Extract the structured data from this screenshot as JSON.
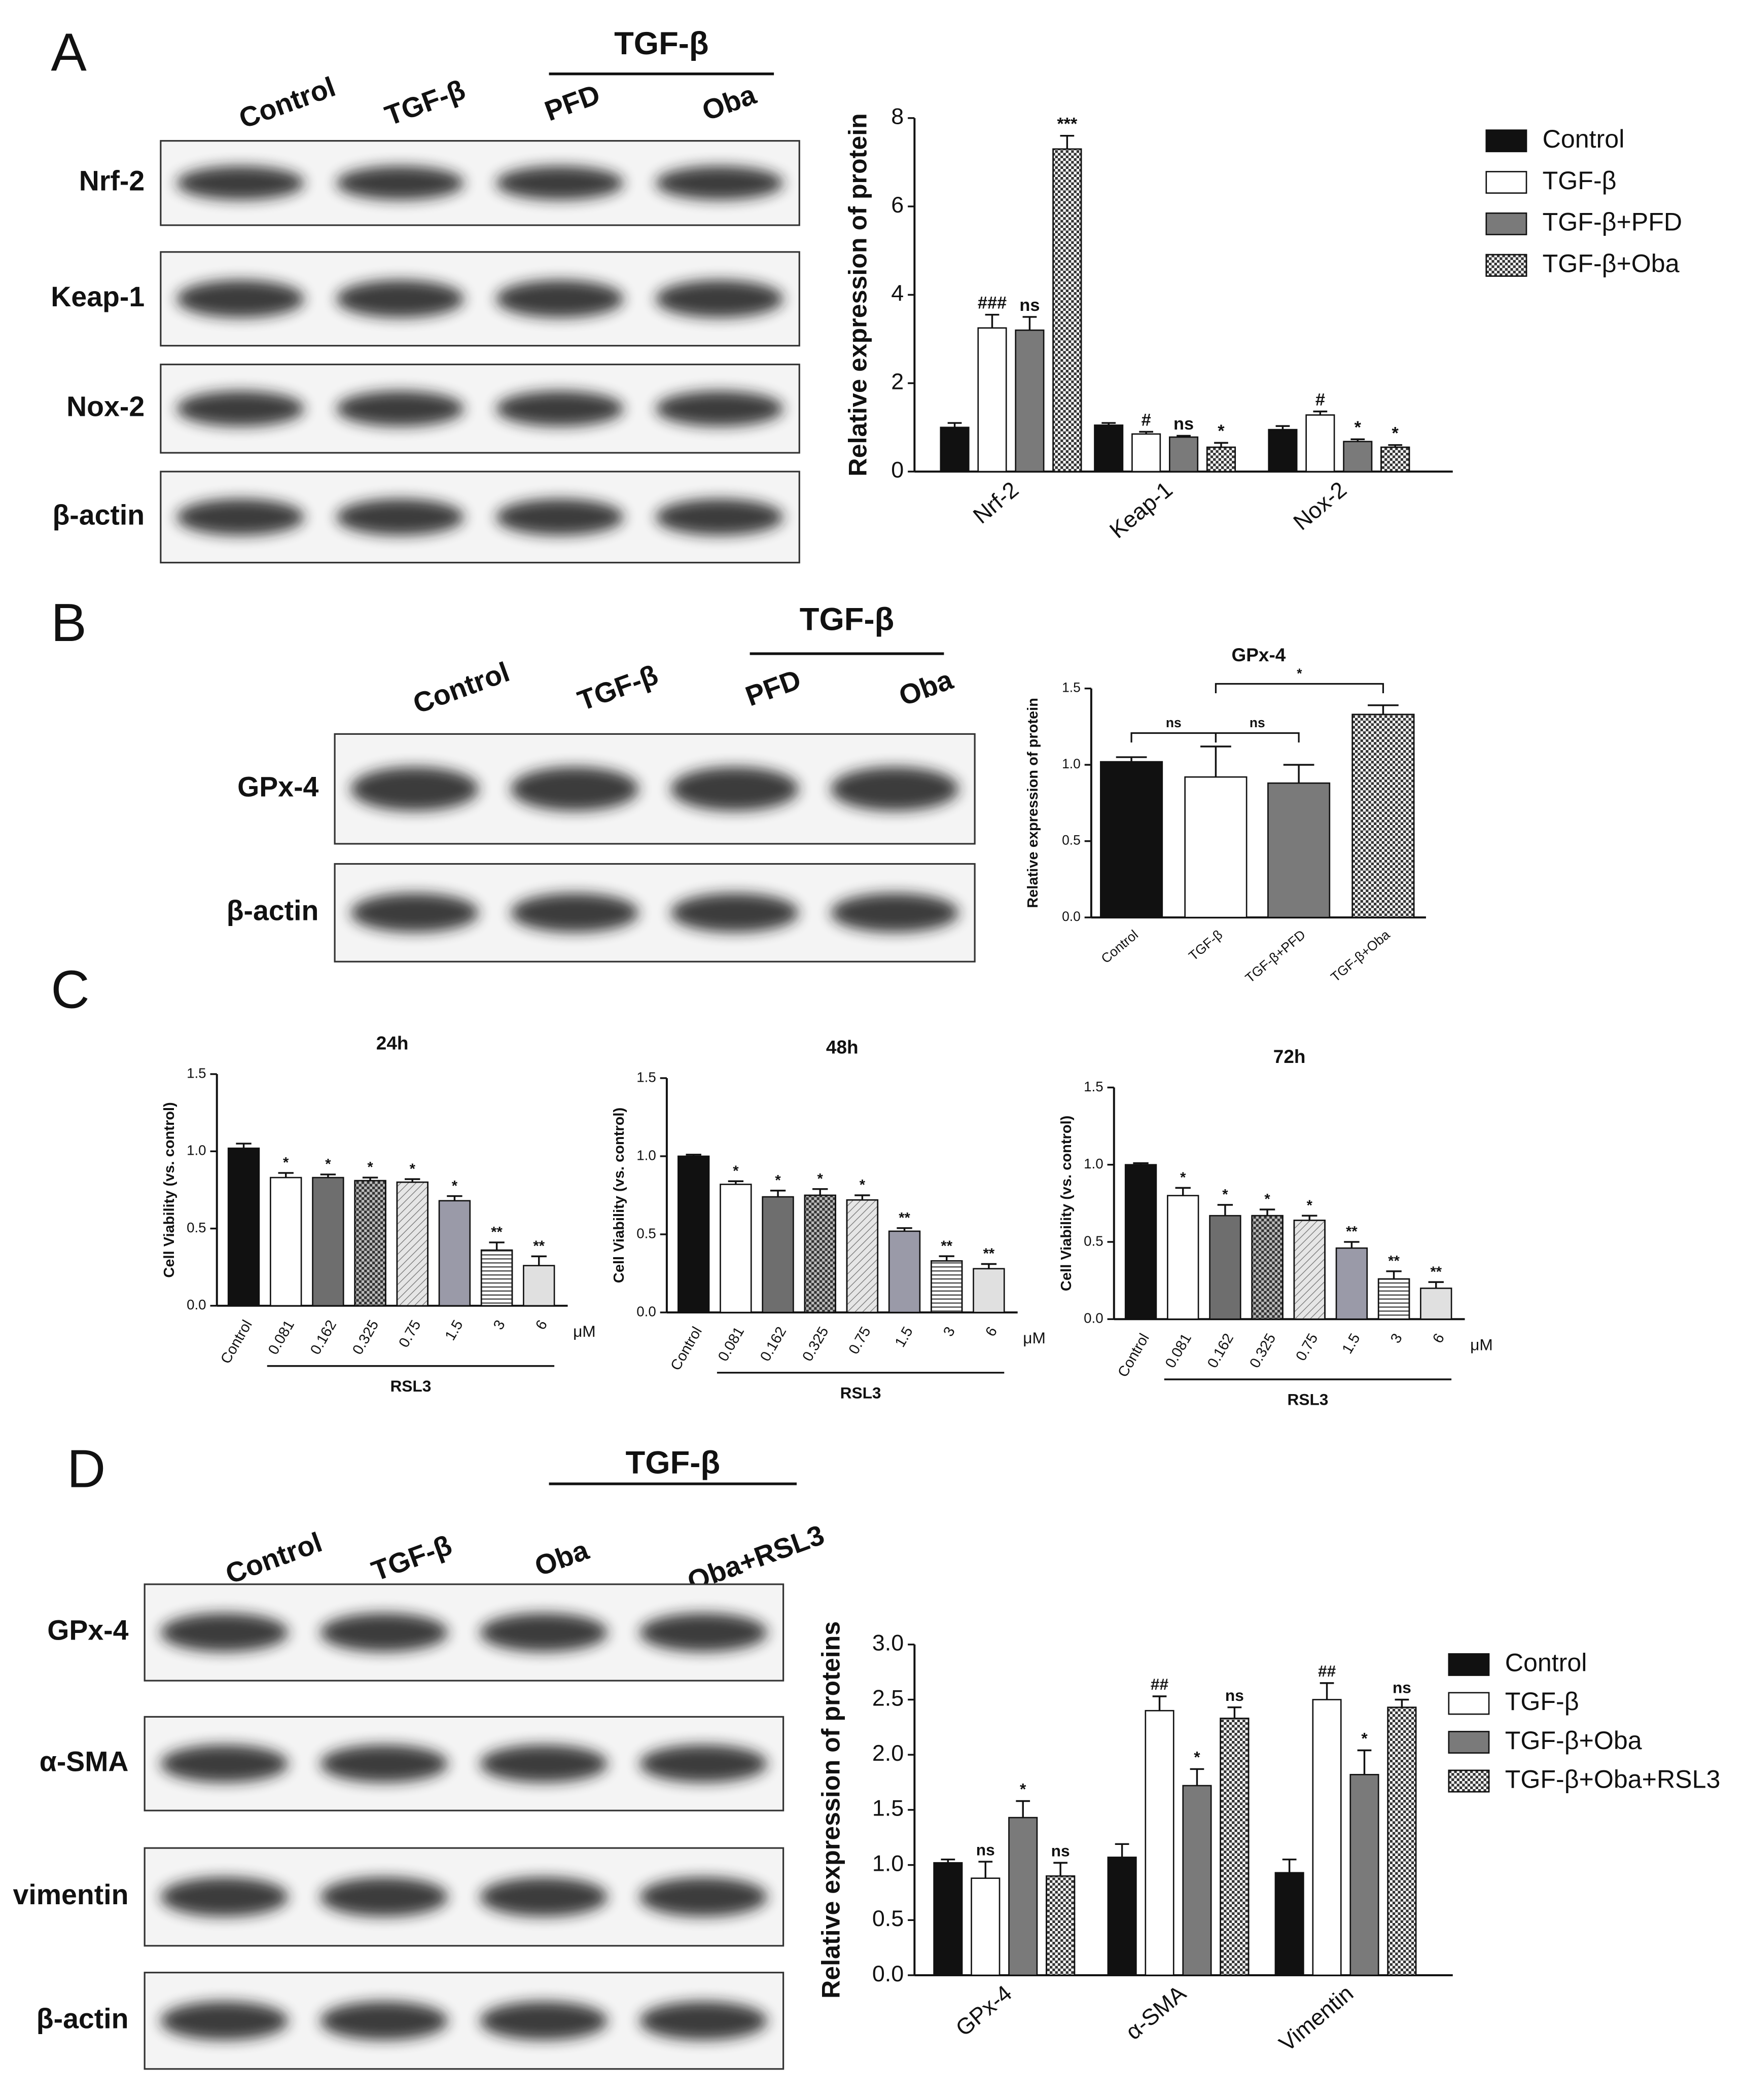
{
  "panels": [
    {
      "letter": "A",
      "blot": {
        "group_label": "TGF-β",
        "lanes": [
          "Control",
          "TGF-β",
          "PFD",
          "Oba"
        ],
        "rows": [
          "Nrf-2",
          "Keap-1",
          "Nox-2",
          "β-actin"
        ]
      }
    },
    {
      "letter": "B",
      "blot": {
        "group_label": "TGF-β",
        "lanes": [
          "Control",
          "TGF-β",
          "PFD",
          "Oba"
        ],
        "rows": [
          "GPx-4",
          "β-actin"
        ]
      }
    },
    {
      "letter": "C"
    },
    {
      "letter": "D",
      "blot": {
        "group_label": "TGF-β",
        "lanes": [
          "Control",
          "TGF-β",
          "Oba",
          "Oba+RSL3"
        ],
        "rows": [
          "GPx-4",
          "α-SMA",
          "vimentin",
          "β-actin"
        ]
      }
    }
  ],
  "chart_data": [
    {
      "type": "grouped-bar",
      "ylabel": "Relative expression of protein",
      "categories": [
        "Nrf-2",
        "Keap-1",
        "Nox-2"
      ],
      "ylim": [
        0,
        8
      ],
      "yticks": [
        0,
        2,
        4,
        6,
        8
      ],
      "legend": "right",
      "series": [
        {
          "name": "Control",
          "color": "#111111",
          "values": [
            1.0,
            1.05,
            0.95
          ],
          "errors": [
            0.1,
            0.05,
            0.08
          ],
          "sig": [
            null,
            null,
            null
          ]
        },
        {
          "name": "TGF-β",
          "color": "#ffffff",
          "values": [
            3.25,
            0.85,
            1.28
          ],
          "errors": [
            0.3,
            0.05,
            0.08
          ],
          "sig": [
            "###",
            "#",
            "#"
          ]
        },
        {
          "name": "TGF-β+PFD",
          "color": "#7a7a7a",
          "values": [
            3.2,
            0.78,
            0.68
          ],
          "errors": [
            0.3,
            0.03,
            0.05
          ],
          "sig": [
            "ns",
            "ns",
            "*"
          ]
        },
        {
          "name": "TGF-β+Oba",
          "color": "#ffffff",
          "pattern": "checker",
          "values": [
            7.3,
            0.55,
            0.55
          ],
          "errors": [
            0.3,
            0.1,
            0.05
          ],
          "sig": [
            "***",
            "*",
            "*"
          ]
        }
      ]
    },
    {
      "type": "bar",
      "title": "GPx-4",
      "ylabel": "Relative expression of protein",
      "categories": [
        "Control",
        "TGF-β",
        "TGF-β+PFD",
        "TGF-β+Oba"
      ],
      "values": [
        1.02,
        0.92,
        0.88,
        1.33
      ],
      "errors": [
        0.03,
        0.2,
        0.12,
        0.06
      ],
      "colors": [
        "#111111",
        "#ffffff",
        "#7a7a7a",
        "#ffffff"
      ],
      "patterns": [
        null,
        null,
        null,
        "checker"
      ],
      "comparisons": [
        {
          "from": 0,
          "to": 1,
          "label": "ns"
        },
        {
          "from": 1,
          "to": 2,
          "label": "ns"
        },
        {
          "from": 1,
          "to": 3,
          "label": "*"
        }
      ],
      "ylim": [
        0,
        1.5
      ],
      "yticks": [
        {
          "value": 0,
          "label": "0.0"
        },
        0.5,
        {
          "value": 1,
          "label": "1.0"
        },
        1.5
      ]
    },
    {
      "type": "bar",
      "title": "24h",
      "ylabel": "Cell Viability (vs. control)",
      "categories": [
        "Control",
        "0.081",
        "0.162",
        "0.325",
        "0.75",
        "1.5",
        "3",
        "6"
      ],
      "unit": "μM",
      "group_label": "RSL3",
      "values": [
        1.02,
        0.83,
        0.83,
        0.81,
        0.8,
        0.68,
        0.36,
        0.26
      ],
      "errors": [
        0.03,
        0.03,
        0.02,
        0.02,
        0.02,
        0.03,
        0.05,
        0.06
      ],
      "sig": [
        null,
        "*",
        "*",
        "*",
        "*",
        "*",
        "**",
        "**"
      ],
      "colors": [
        "#111111",
        "#ffffff",
        "#6e6e6e",
        "#bbbbbb",
        "#e6e6e6",
        "#9a9aa8",
        "#ffffff",
        "#e0e0e0"
      ],
      "patterns": [
        null,
        null,
        null,
        "checker",
        "hatch",
        null,
        "stripes",
        null
      ],
      "ylim": [
        0,
        1.5
      ],
      "yticks": [
        {
          "value": 0,
          "label": "0.0"
        },
        0.5,
        {
          "value": 1,
          "label": "1.0"
        },
        1.5
      ]
    },
    {
      "type": "bar",
      "title": "48h",
      "ylabel": "Cell Viability (vs. control)",
      "categories": [
        "Control",
        "0.081",
        "0.162",
        "0.325",
        "0.75",
        "1.5",
        "3",
        "6"
      ],
      "unit": "μM",
      "group_label": "RSL3",
      "values": [
        1.0,
        0.82,
        0.74,
        0.75,
        0.72,
        0.52,
        0.33,
        0.28
      ],
      "errors": [
        0.01,
        0.02,
        0.04,
        0.04,
        0.03,
        0.02,
        0.03,
        0.03
      ],
      "sig": [
        null,
        "*",
        "*",
        "*",
        "*",
        "**",
        "**",
        "**"
      ],
      "colors": [
        "#111111",
        "#ffffff",
        "#6e6e6e",
        "#bbbbbb",
        "#e6e6e6",
        "#9a9aa8",
        "#ffffff",
        "#e0e0e0"
      ],
      "patterns": [
        null,
        null,
        null,
        "checker",
        "hatch",
        null,
        "stripes",
        null
      ],
      "ylim": [
        0,
        1.5
      ],
      "yticks": [
        {
          "value": 0,
          "label": "0.0"
        },
        0.5,
        {
          "value": 1,
          "label": "1.0"
        },
        1.5
      ]
    },
    {
      "type": "bar",
      "title": "72h",
      "ylabel": "Cell Viability (vs. control)",
      "categories": [
        "Control",
        "0.081",
        "0.162",
        "0.325",
        "0.75",
        "1.5",
        "3",
        "6"
      ],
      "unit": "μM",
      "group_label": "RSL3",
      "values": [
        1.0,
        0.8,
        0.67,
        0.67,
        0.64,
        0.46,
        0.26,
        0.2
      ],
      "errors": [
        0.01,
        0.05,
        0.07,
        0.04,
        0.03,
        0.04,
        0.05,
        0.04
      ],
      "sig": [
        null,
        "*",
        "*",
        "*",
        "*",
        "**",
        "**",
        "**"
      ],
      "colors": [
        "#111111",
        "#ffffff",
        "#6e6e6e",
        "#bbbbbb",
        "#e6e6e6",
        "#9a9aa8",
        "#ffffff",
        "#e0e0e0"
      ],
      "patterns": [
        null,
        null,
        null,
        "checker",
        "hatch",
        null,
        "stripes",
        null
      ],
      "ylim": [
        0,
        1.5
      ],
      "yticks": [
        {
          "value": 0,
          "label": "0.0"
        },
        0.5,
        {
          "value": 1,
          "label": "1.0"
        },
        1.5
      ]
    },
    {
      "type": "grouped-bar",
      "ylabel": "Relative expression of proteins",
      "categories": [
        "GPx-4",
        "α-SMA",
        "Vimentin"
      ],
      "ylim": [
        0,
        3
      ],
      "yticks": [
        {
          "value": 0,
          "label": "0.0"
        },
        0.5,
        {
          "value": 1,
          "label": "1.0"
        },
        1.5,
        {
          "value": 2,
          "label": "2.0"
        },
        2.5,
        {
          "value": 3,
          "label": "3.0"
        }
      ],
      "legend": "right",
      "series": [
        {
          "name": "Control",
          "color": "#111111",
          "values": [
            1.02,
            1.07,
            0.93
          ],
          "errors": [
            0.03,
            0.12,
            0.12
          ],
          "sig": [
            null,
            null,
            null
          ]
        },
        {
          "name": "TGF-β",
          "color": "#ffffff",
          "values": [
            0.88,
            2.4,
            2.5
          ],
          "errors": [
            0.15,
            0.13,
            0.15
          ],
          "sig": [
            "ns",
            "##",
            "##"
          ]
        },
        {
          "name": "TGF-β+Oba",
          "color": "#7a7a7a",
          "values": [
            1.43,
            1.72,
            1.82
          ],
          "errors": [
            0.15,
            0.15,
            0.22
          ],
          "sig": [
            "*",
            "*",
            "*"
          ]
        },
        {
          "name": "TGF-β+Oba+RSL3",
          "color": "#ffffff",
          "pattern": "checker",
          "values": [
            0.9,
            2.33,
            2.43
          ],
          "errors": [
            0.12,
            0.1,
            0.07
          ],
          "sig": [
            "ns",
            "ns",
            "ns"
          ]
        }
      ]
    }
  ]
}
